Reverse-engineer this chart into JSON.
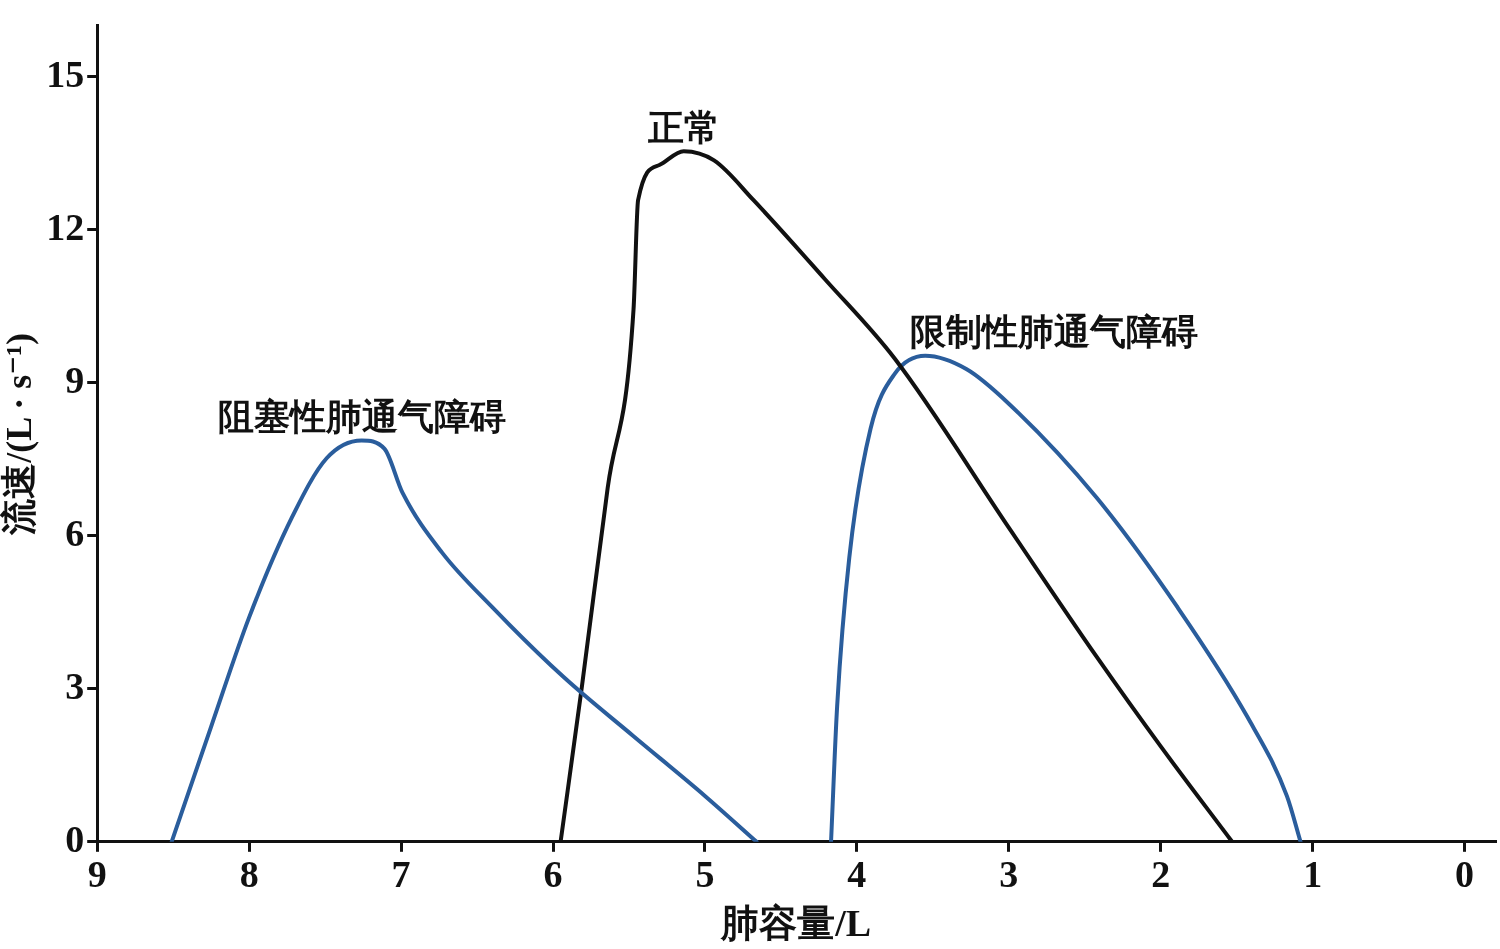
{
  "chart_data": {
    "type": "line",
    "xlabel": "肺容量/L",
    "ylabel": "流速/(L · s⁻¹)",
    "xlim": [
      9,
      -0.2
    ],
    "xticks": [
      9,
      8,
      7,
      6,
      5,
      4,
      3,
      2,
      1,
      0
    ],
    "ylim": [
      0,
      16
    ],
    "yticks": [
      0,
      3,
      6,
      9,
      12,
      15
    ],
    "grid": false,
    "legend": false,
    "marker": "none",
    "line_style": "solid",
    "series": [
      {
        "name": "阻塞性肺通气障碍",
        "color": "#2a5d9c",
        "x": [
          8.51,
          8.25,
          8.0,
          7.72,
          7.49,
          7.26,
          7.11,
          6.99,
          6.73,
          6.4,
          5.93,
          5.47,
          5.0,
          4.66
        ],
        "values": [
          0,
          2.26,
          4.4,
          6.35,
          7.52,
          7.87,
          7.71,
          6.84,
          5.67,
          4.6,
          3.23,
          2.07,
          0.9,
          0
        ]
      },
      {
        "name": "正常",
        "color": "#111111",
        "x": [
          5.95,
          5.81,
          5.64,
          5.47,
          5.44,
          5.3,
          5.14,
          4.94,
          4.68,
          4.21,
          3.75,
          3.0,
          2.42,
          2.0,
          1.53
        ],
        "values": [
          0,
          3.04,
          6.94,
          10.44,
          12.58,
          13.27,
          13.54,
          13.36,
          12.58,
          11.03,
          9.47,
          6.16,
          3.62,
          1.87,
          0
        ]
      },
      {
        "name": "限制性肺通气障碍",
        "color": "#2a5d9c",
        "x": [
          4.17,
          4.13,
          4.05,
          3.91,
          3.75,
          3.55,
          3.28,
          3.0,
          2.42,
          1.89,
          1.43,
          1.17,
          1.08
        ],
        "values": [
          0,
          2.65,
          5.57,
          8.1,
          9.18,
          9.53,
          9.27,
          8.59,
          6.74,
          4.6,
          2.45,
          0.9,
          0
        ]
      }
    ]
  }
}
